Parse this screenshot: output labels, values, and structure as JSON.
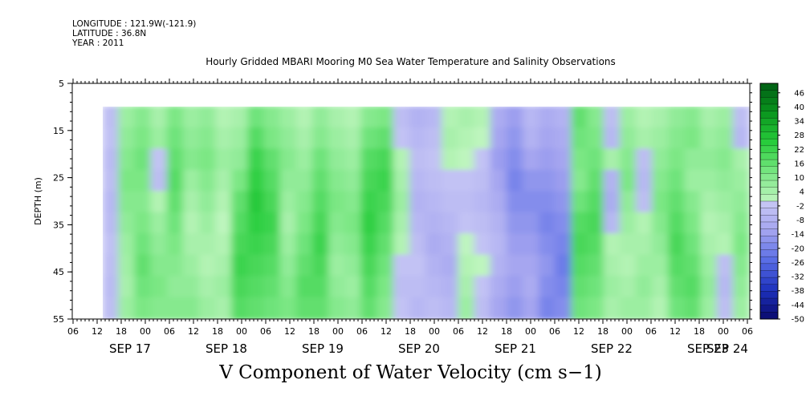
{
  "header": {
    "longitude": "LONGITUDE : 121.9W(-121.9)",
    "latitude": "LATITUDE : 36.8N",
    "year": "YEAR : 2011"
  },
  "chart_data": {
    "type": "heatmap",
    "title": "Hourly Gridded MBARI Mooring M0 Sea Water Temperature and Salinity Observations",
    "xlabel": "V Component of Water Velocity (cm s−1)",
    "ylabel": "DEPTH (m)",
    "y_ticks": [
      "5",
      "15",
      "25",
      "35",
      "45",
      "55"
    ],
    "ylim": [
      55,
      5
    ],
    "hour_ticks": [
      "06",
      "12",
      "18",
      "00",
      "06",
      "12",
      "18",
      "00",
      "06",
      "12",
      "18",
      "00",
      "06",
      "12",
      "18",
      "00",
      "06",
      "12",
      "18",
      "00",
      "06",
      "12",
      "18",
      "00",
      "06",
      "12",
      "18",
      "00",
      "06"
    ],
    "day_labels": [
      "SEP 17",
      "SEP 18",
      "SEP 19",
      "SEP 20",
      "SEP 21",
      "SEP 22",
      "SEP 23",
      "SEP 24"
    ],
    "colorbar": {
      "levels": [
        "46",
        "40",
        "34",
        "28",
        "22",
        "16",
        "10",
        "4",
        "-2",
        "-8",
        "-14",
        "-20",
        "-26",
        "-32",
        "-38",
        "-44",
        "-50"
      ],
      "range": [
        -50,
        50
      ]
    },
    "data_depth_range": [
      10,
      55
    ],
    "columns": [
      [
        -4,
        -3,
        -5,
        -4,
        -6,
        -5,
        -3,
        -4,
        -5,
        -4
      ],
      [
        6,
        8,
        10,
        12,
        10,
        8,
        6,
        5,
        4,
        6
      ],
      [
        10,
        12,
        14,
        12,
        10,
        12,
        14,
        16,
        14,
        12
      ],
      [
        4,
        6,
        -2,
        -4,
        2,
        6,
        8,
        10,
        12,
        10
      ],
      [
        12,
        14,
        16,
        18,
        16,
        14,
        12,
        10,
        8,
        10
      ],
      [
        6,
        8,
        10,
        6,
        4,
        2,
        4,
        6,
        8,
        10
      ],
      [
        8,
        10,
        12,
        10,
        8,
        6,
        4,
        2,
        4,
        6
      ],
      [
        2,
        4,
        6,
        4,
        2,
        0,
        2,
        4,
        6,
        4
      ],
      [
        4,
        6,
        8,
        12,
        16,
        18,
        20,
        22,
        20,
        18
      ],
      [
        14,
        18,
        22,
        24,
        26,
        24,
        22,
        20,
        18,
        16
      ],
      [
        10,
        12,
        16,
        18,
        20,
        22,
        20,
        18,
        16,
        14
      ],
      [
        6,
        8,
        10,
        8,
        6,
        4,
        6,
        8,
        10,
        12
      ],
      [
        2,
        4,
        6,
        8,
        10,
        12,
        14,
        16,
        18,
        16
      ],
      [
        8,
        10,
        14,
        16,
        18,
        20,
        22,
        20,
        18,
        16
      ],
      [
        4,
        6,
        8,
        10,
        12,
        10,
        8,
        6,
        8,
        10
      ],
      [
        2,
        4,
        6,
        8,
        10,
        12,
        10,
        8,
        6,
        8
      ],
      [
        10,
        14,
        18,
        20,
        22,
        24,
        22,
        20,
        18,
        16
      ],
      [
        12,
        16,
        20,
        22,
        20,
        18,
        16,
        14,
        12,
        10
      ],
      [
        -4,
        -2,
        2,
        4,
        6,
        4,
        2,
        -2,
        -4,
        -2
      ],
      [
        -8,
        -6,
        -4,
        -6,
        -8,
        -6,
        -4,
        -2,
        -4,
        -6
      ],
      [
        -6,
        -4,
        -2,
        -4,
        -6,
        -8,
        -10,
        -8,
        -6,
        -4
      ],
      [
        2,
        4,
        2,
        -2,
        -4,
        -6,
        -8,
        -10,
        -8,
        -6
      ],
      [
        4,
        2,
        0,
        -2,
        -4,
        -2,
        0,
        2,
        4,
        6
      ],
      [
        2,
        0,
        -2,
        -4,
        -6,
        -4,
        -2,
        0,
        -2,
        -4
      ],
      [
        -10,
        -12,
        -14,
        -12,
        -10,
        -8,
        -6,
        -8,
        -10,
        -12
      ],
      [
        -14,
        -16,
        -18,
        -20,
        -18,
        -16,
        -14,
        -12,
        -14,
        -16
      ],
      [
        -6,
        -8,
        -12,
        -16,
        -18,
        -16,
        -14,
        -12,
        -10,
        -12
      ],
      [
        -10,
        -12,
        -14,
        -16,
        -18,
        -20,
        -18,
        -16,
        -18,
        -20
      ],
      [
        -8,
        -10,
        -12,
        -14,
        -16,
        -18,
        -20,
        -22,
        -20,
        -18
      ],
      [
        16,
        14,
        12,
        10,
        14,
        18,
        20,
        18,
        16,
        14
      ],
      [
        10,
        12,
        14,
        16,
        18,
        20,
        18,
        16,
        14,
        12
      ],
      [
        -4,
        -6,
        4,
        -8,
        -10,
        -6,
        2,
        4,
        6,
        4
      ],
      [
        6,
        8,
        10,
        12,
        8,
        6,
        4,
        2,
        4,
        6
      ],
      [
        2,
        4,
        -4,
        -6,
        -4,
        2,
        4,
        6,
        8,
        6
      ],
      [
        4,
        6,
        8,
        10,
        12,
        10,
        8,
        6,
        4,
        2
      ],
      [
        8,
        10,
        12,
        14,
        16,
        18,
        20,
        18,
        16,
        14
      ],
      [
        10,
        12,
        8,
        6,
        10,
        12,
        14,
        16,
        18,
        16
      ],
      [
        4,
        6,
        8,
        6,
        4,
        2,
        4,
        6,
        8,
        6
      ],
      [
        6,
        8,
        10,
        8,
        6,
        4,
        2,
        -4,
        -6,
        -4
      ],
      [
        -4,
        -6,
        4,
        6,
        8,
        10,
        12,
        10,
        8,
        6
      ]
    ]
  }
}
